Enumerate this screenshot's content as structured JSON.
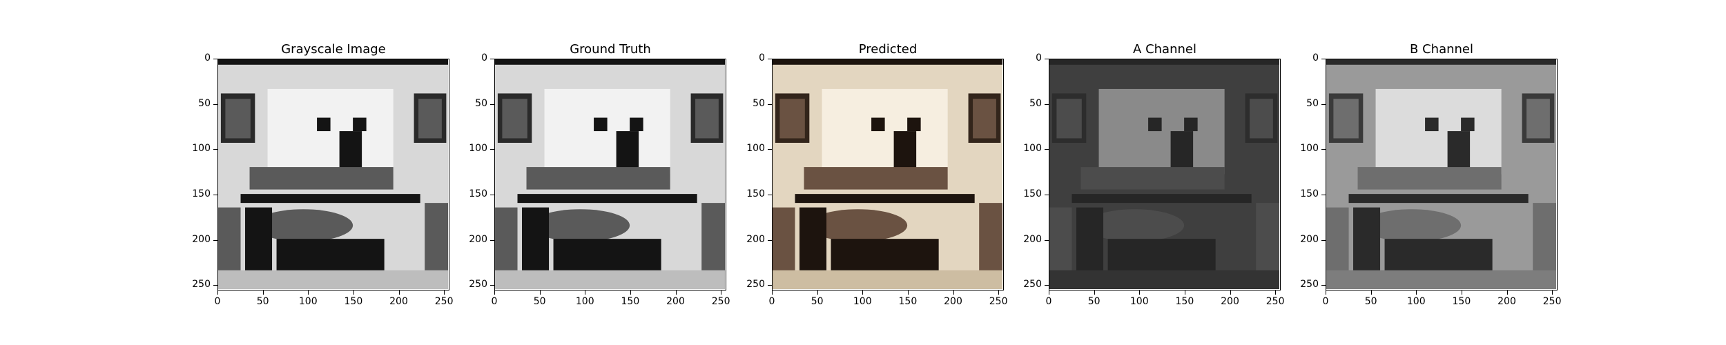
{
  "figure": {
    "panels": [
      {
        "title": "Grayscale Image",
        "tone": "gray"
      },
      {
        "title": "Ground Truth",
        "tone": "gray"
      },
      {
        "title": "Predicted",
        "tone": "sepia"
      },
      {
        "title": "A Channel",
        "tone": "dark"
      },
      {
        "title": "B Channel",
        "tone": "mid"
      }
    ],
    "x_ticks": [
      "0",
      "50",
      "100",
      "150",
      "200",
      "250"
    ],
    "y_ticks": [
      "0",
      "50",
      "100",
      "150",
      "200",
      "250"
    ],
    "x_tick_values": [
      0,
      50,
      100,
      150,
      200,
      250
    ],
    "y_tick_values": [
      0,
      50,
      100,
      150,
      200,
      250
    ],
    "image_extent": [
      0,
      256
    ]
  }
}
